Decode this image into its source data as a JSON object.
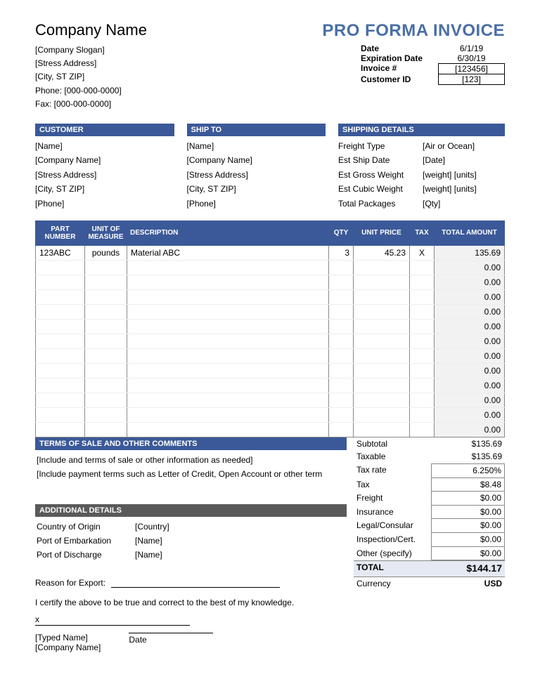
{
  "header": {
    "company_name": "Company Name",
    "doc_title": "PRO FORMA INVOICE"
  },
  "company": {
    "slogan": "[Company Slogan]",
    "address": "[Stress Address]",
    "city": "[City, ST  ZIP]",
    "phone": "Phone: [000-000-0000]",
    "fax": "Fax: [000-000-0000]"
  },
  "meta": {
    "date_label": "Date",
    "date": "6/1/19",
    "exp_label": "Expiration Date",
    "exp": "6/30/19",
    "inv_label": "Invoice #",
    "inv": "[123456]",
    "cust_label": "Customer ID",
    "cust": "[123]"
  },
  "customer": {
    "title": "CUSTOMER",
    "lines": [
      "[Name]",
      "[Company Name]",
      "[Stress Address]",
      "[City, ST  ZIP]",
      "[Phone]"
    ]
  },
  "shipto": {
    "title": "SHIP TO",
    "lines": [
      "[Name]",
      "[Company Name]",
      "[Stress Address]",
      "[City, ST  ZIP]",
      "[Phone]"
    ]
  },
  "shipping": {
    "title": "SHIPPING DETAILS",
    "rows": [
      {
        "k": "Freight Type",
        "v": "[Air or Ocean]"
      },
      {
        "k": "Est Ship Date",
        "v": "[Date]"
      },
      {
        "k": "Est Gross Weight",
        "v": "[weight] [units]"
      },
      {
        "k": "Est Cubic Weight",
        "v": "[weight] [units]"
      },
      {
        "k": "Total Packages",
        "v": "[Qty]"
      }
    ]
  },
  "items": {
    "headers": {
      "part": "PART NUMBER",
      "uom": "UNIT OF MEASURE",
      "desc": "DESCRIPTION",
      "qty": "QTY",
      "price": "UNIT PRICE",
      "tax": "TAX",
      "amt": "TOTAL AMOUNT"
    },
    "rows": [
      {
        "part": "123ABC",
        "uom": "pounds",
        "desc": "Material ABC",
        "qty": "3",
        "price": "45.23",
        "tax": "X",
        "amt": "135.69"
      },
      {
        "part": "",
        "uom": "",
        "desc": "",
        "qty": "",
        "price": "",
        "tax": "",
        "amt": "0.00"
      },
      {
        "part": "",
        "uom": "",
        "desc": "",
        "qty": "",
        "price": "",
        "tax": "",
        "amt": "0.00"
      },
      {
        "part": "",
        "uom": "",
        "desc": "",
        "qty": "",
        "price": "",
        "tax": "",
        "amt": "0.00"
      },
      {
        "part": "",
        "uom": "",
        "desc": "",
        "qty": "",
        "price": "",
        "tax": "",
        "amt": "0.00"
      },
      {
        "part": "",
        "uom": "",
        "desc": "",
        "qty": "",
        "price": "",
        "tax": "",
        "amt": "0.00"
      },
      {
        "part": "",
        "uom": "",
        "desc": "",
        "qty": "",
        "price": "",
        "tax": "",
        "amt": "0.00"
      },
      {
        "part": "",
        "uom": "",
        "desc": "",
        "qty": "",
        "price": "",
        "tax": "",
        "amt": "0.00"
      },
      {
        "part": "",
        "uom": "",
        "desc": "",
        "qty": "",
        "price": "",
        "tax": "",
        "amt": "0.00"
      },
      {
        "part": "",
        "uom": "",
        "desc": "",
        "qty": "",
        "price": "",
        "tax": "",
        "amt": "0.00"
      },
      {
        "part": "",
        "uom": "",
        "desc": "",
        "qty": "",
        "price": "",
        "tax": "",
        "amt": "0.00"
      },
      {
        "part": "",
        "uom": "",
        "desc": "",
        "qty": "",
        "price": "",
        "tax": "",
        "amt": "0.00"
      },
      {
        "part": "",
        "uom": "",
        "desc": "",
        "qty": "",
        "price": "",
        "tax": "",
        "amt": "0.00"
      }
    ]
  },
  "terms": {
    "title": "TERMS OF SALE AND OTHER COMMENTS",
    "lines": [
      "[Include and terms of sale or other information as needed]",
      "[Include payment terms such as Letter of Credit, Open Account or other term"
    ]
  },
  "additional": {
    "title": "ADDITIONAL DETAILS",
    "rows": [
      {
        "k": "Country of Origin",
        "v": "[Country]"
      },
      {
        "k": "Port of Embarkation",
        "v": "[Name]"
      },
      {
        "k": "Port of Discharge",
        "v": "[Name]"
      }
    ]
  },
  "summary": {
    "rows": [
      {
        "k": "Subtotal",
        "v": "$135.69",
        "box": false
      },
      {
        "k": "Taxable",
        "v": "$135.69",
        "box": false
      },
      {
        "k": "Tax rate",
        "v": "6.250%",
        "box": true,
        "first": true
      },
      {
        "k": "Tax",
        "v": "$8.48",
        "box": true
      },
      {
        "k": "Freight",
        "v": "$0.00",
        "box": true
      },
      {
        "k": "Insurance",
        "v": "$0.00",
        "box": true
      },
      {
        "k": "Legal/Consular",
        "v": "$0.00",
        "box": true
      },
      {
        "k": "Inspection/Cert.",
        "v": "$0.00",
        "box": true
      },
      {
        "k": "Other (specify)",
        "v": "$0.00",
        "box": true
      }
    ],
    "total_label": "TOTAL",
    "total": "$144.17",
    "currency_label": "Currency",
    "currency": "USD"
  },
  "footer": {
    "reason_label": "Reason for Export:",
    "certify": "I certify the above to be true and correct to the best of my knowledge.",
    "x": "x",
    "typed_name": "[Typed Name]",
    "company": "[Company Name]",
    "date_label": "Date"
  }
}
